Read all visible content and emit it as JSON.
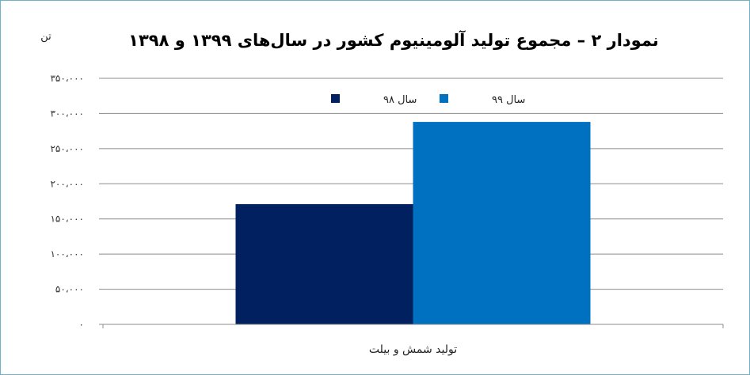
{
  "chart_data": {
    "type": "bar",
    "title": "نمودار ۲ – مجموع تولید آلومینیوم کشور در سال‌های ۱۳۹۹ و ۱۳۹۸",
    "unit_label": "تن",
    "categories": [
      "تولید شمش و بیلت"
    ],
    "series": [
      {
        "name": "سال ۹۸",
        "values": [
          171000
        ],
        "color": "#002060"
      },
      {
        "name": "سال ۹۹",
        "values": [
          288000
        ],
        "color": "#0070c0"
      }
    ],
    "ylim": [
      0,
      350000
    ],
    "yticks": [
      0,
      50000,
      100000,
      150000,
      200000,
      250000,
      300000,
      350000
    ],
    "ytick_labels": [
      "۰",
      "۵۰،۰۰۰",
      "۱۰۰،۰۰۰",
      "۱۵۰،۰۰۰",
      "۲۰۰،۰۰۰",
      "۲۵۰،۰۰۰",
      "۳۰۰،۰۰۰",
      "۳۵۰،۰۰۰"
    ],
    "grid": true,
    "legend_position": "top-center"
  }
}
